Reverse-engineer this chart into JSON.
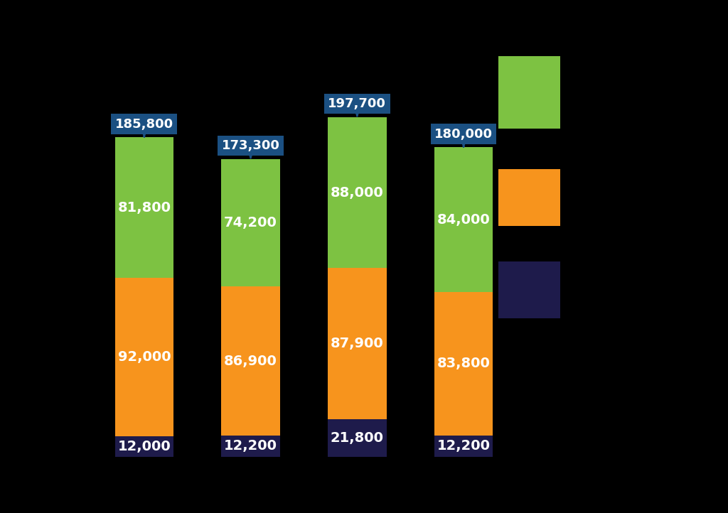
{
  "bars": [
    {
      "x": 0,
      "orange": 92000,
      "green": 81800,
      "dark": 12000,
      "total": 185800
    },
    {
      "x": 1,
      "orange": 86900,
      "green": 74200,
      "dark": 12200,
      "total": 173300
    },
    {
      "x": 2,
      "orange": 87900,
      "green": 88000,
      "dark": 21800,
      "total": 197700
    },
    {
      "x": 3,
      "orange": 83800,
      "green": 84000,
      "dark": 12200,
      "total": 180000
    }
  ],
  "colors": {
    "green": "#7DC242",
    "orange": "#F7941D",
    "dark": "#1E1B4B"
  },
  "label_color": "white",
  "total_box_color": "#1B5082",
  "total_text_color": "white",
  "background_color": "#000000",
  "bar_width": 0.55,
  "fontsize_labels": 14,
  "fontsize_totals": 13,
  "ylim_max": 230000
}
